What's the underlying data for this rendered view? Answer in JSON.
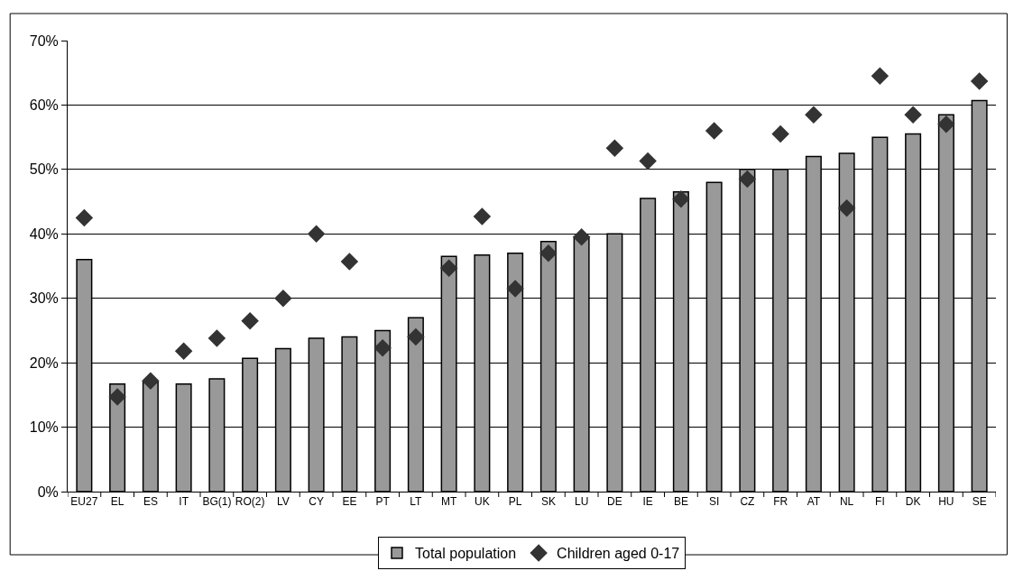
{
  "chart_data": {
    "type": "bar",
    "categories": [
      "EU27",
      "EL",
      "ES",
      "IT",
      "BG(1)",
      "RO(2)",
      "LV",
      "CY",
      "EE",
      "PT",
      "LT",
      "MT",
      "UK",
      "PL",
      "SK",
      "LU",
      "DE",
      "IE",
      "BE",
      "SI",
      "CZ",
      "FR",
      "AT",
      "NL",
      "FI",
      "DK",
      "HU",
      "SE"
    ],
    "series": [
      {
        "name": "Total population",
        "color": "#999999",
        "values": [
          36,
          16.7,
          17,
          16.7,
          17.5,
          20.7,
          22.2,
          23.8,
          24,
          25,
          27,
          36.5,
          36.7,
          37,
          38.8,
          39.5,
          40,
          45.5,
          46.5,
          48,
          50,
          50,
          52,
          52.5,
          55,
          55.5,
          58.5,
          60.7
        ]
      },
      {
        "name": "Children aged 0-17",
        "type": "scatter",
        "marker": "diamond",
        "color": "#333333",
        "values": [
          42.5,
          14.7,
          17.2,
          21.8,
          23.8,
          26.5,
          30,
          40,
          35.7,
          22.3,
          24,
          34.7,
          42.7,
          31.5,
          37,
          39.5,
          53.3,
          51.3,
          45.4,
          56,
          48.5,
          55.5,
          58.5,
          44,
          64.5,
          58.5,
          57,
          63.7
        ]
      }
    ],
    "ylim": [
      0,
      70
    ],
    "yticks": [
      {
        "value": 0,
        "label": "0%"
      },
      {
        "value": 10,
        "label": "10%"
      },
      {
        "value": 20,
        "label": "20%"
      },
      {
        "value": 30,
        "label": "30%"
      },
      {
        "value": 40,
        "label": "40%"
      },
      {
        "value": 50,
        "label": "50%"
      },
      {
        "value": 60,
        "label": "60%"
      },
      {
        "value": 70,
        "label": "70%"
      }
    ],
    "grid": "y",
    "legend": "bottom"
  }
}
